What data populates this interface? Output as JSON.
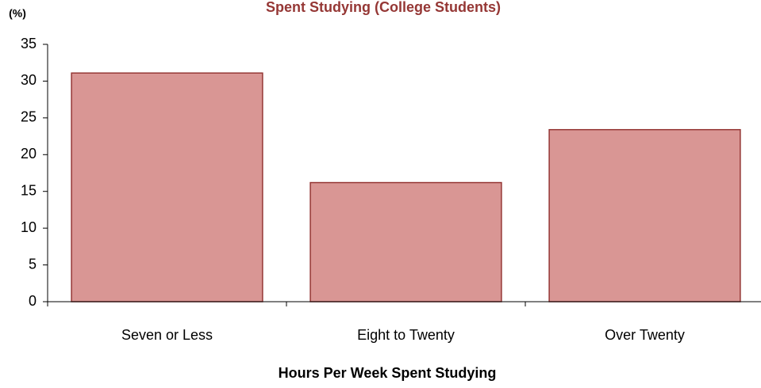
{
  "chart_data": {
    "type": "bar",
    "title": "Spent Studying  (College Students)",
    "y_label": "(%)",
    "x_label": "Hours Per Week Spent Studying",
    "categories": [
      "Seven or Less",
      "Eight to Twenty",
      "Over Twenty"
    ],
    "values": [
      31.1,
      16.2,
      23.4
    ],
    "color": "#d99694",
    "edge_color": "#953735",
    "ylim": [
      0,
      35
    ],
    "yticks": [
      0,
      5,
      10,
      15,
      20,
      25,
      30,
      35
    ],
    "grid": false
  }
}
